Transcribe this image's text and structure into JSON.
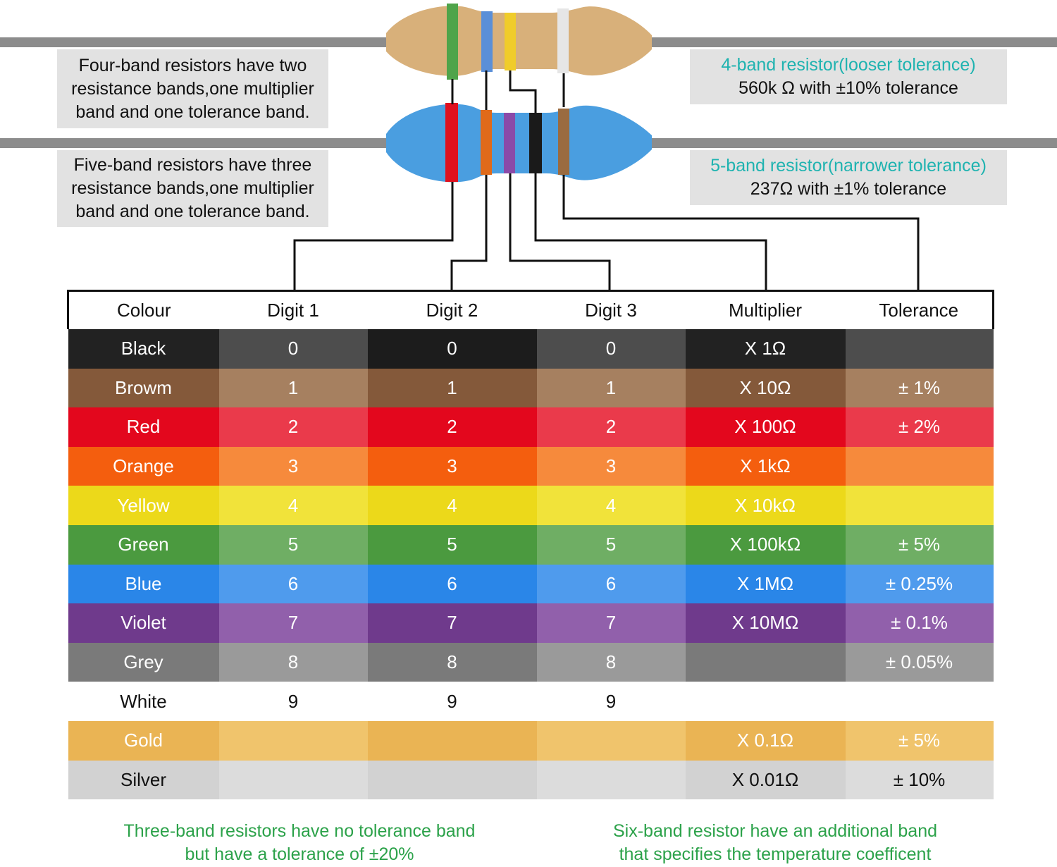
{
  "notes": {
    "left_four_band": [
      "Four-band resistors have two",
      "resistance bands,one multiplier",
      "band and one tolerance band."
    ],
    "left_five_band": [
      "Five-band resistors have three",
      "resistance bands,one multiplier",
      "band and one tolerance band."
    ],
    "right_four_band": {
      "title": "4-band resistor(looser tolerance)",
      "value": "560k Ω with ±10% tolerance"
    },
    "right_five_band": {
      "title": "5-band resistor(narrower tolerance)",
      "value": "237Ω with ±1% tolerance"
    }
  },
  "colors": {
    "accent_teal": "#1fb3b0",
    "footer_green": "#2ca24a",
    "four_band_body": "#d8b07a",
    "five_band_body": "#4a9ee0"
  },
  "four_band_resistor": {
    "bands": [
      "#4fa44a",
      "#5a8fd8",
      "#f0cc2a",
      "#e6e6e6"
    ]
  },
  "five_band_resistor": {
    "bands": [
      "#e0101e",
      "#e06a1a",
      "#8a4aa8",
      "#1a1a1a",
      "#9a6b40"
    ]
  },
  "table": {
    "headers": [
      "Colour",
      "Digit 1",
      "Digit 2",
      "Digit 3",
      "Multiplier",
      "Tolerance"
    ],
    "rows": [
      {
        "name": "Black",
        "cells": [
          "0",
          "0",
          "0",
          "X 1Ω",
          ""
        ],
        "shades": [
          "#222222",
          "#4d4d4d",
          "#1c1c1c",
          "#4d4d4d",
          "#222222",
          "#4d4d4d"
        ]
      },
      {
        "name": "Browm",
        "cells": [
          "1",
          "1",
          "1",
          "X 10Ω",
          "± 1%"
        ],
        "shades": [
          "#84593a",
          "#a68060",
          "#84593a",
          "#a68060",
          "#84593a",
          "#a68060"
        ]
      },
      {
        "name": "Red",
        "cells": [
          "2",
          "2",
          "2",
          "X 100Ω",
          "± 2%"
        ],
        "shades": [
          "#e3071d",
          "#ea3a4b",
          "#e3071d",
          "#ea3a4b",
          "#e3071d",
          "#ea3a4b"
        ]
      },
      {
        "name": "Orange",
        "cells": [
          "3",
          "3",
          "3",
          "X 1kΩ",
          ""
        ],
        "shades": [
          "#f45e0e",
          "#f68a3c",
          "#f45e0e",
          "#f68a3c",
          "#f45e0e",
          "#f68a3c"
        ]
      },
      {
        "name": "Yellow",
        "cells": [
          "4",
          "4",
          "4",
          "X 10kΩ",
          ""
        ],
        "shades": [
          "#ecd91a",
          "#f1e33a",
          "#ecd91a",
          "#f1e33a",
          "#ecd91a",
          "#f1e33a"
        ]
      },
      {
        "name": "Green",
        "cells": [
          "5",
          "5",
          "5",
          "X 100kΩ",
          "± 5%"
        ],
        "shades": [
          "#4b9a3f",
          "#6fae64",
          "#4b9a3f",
          "#6fae64",
          "#4b9a3f",
          "#6fae64"
        ]
      },
      {
        "name": "Blue",
        "cells": [
          "6",
          "6",
          "6",
          "X 1MΩ",
          "± 0.25%"
        ],
        "shades": [
          "#2a86e8",
          "#4f9bed",
          "#2a86e8",
          "#4f9bed",
          "#2a86e8",
          "#4f9bed"
        ]
      },
      {
        "name": "Violet",
        "cells": [
          "7",
          "7",
          "7",
          "X 10MΩ",
          "± 0.1%"
        ],
        "shades": [
          "#6f3a8c",
          "#9160ab",
          "#6f3a8c",
          "#9160ab",
          "#6f3a8c",
          "#9160ab"
        ]
      },
      {
        "name": "Grey",
        "cells": [
          "8",
          "8",
          "8",
          "",
          "± 0.05%"
        ],
        "shades": [
          "#7a7a7a",
          "#9a9a9a",
          "#7a7a7a",
          "#9a9a9a",
          "#7a7a7a",
          "#9a9a9a"
        ]
      },
      {
        "name": "White",
        "cells": [
          "9",
          "9",
          "9",
          "",
          ""
        ],
        "shades": [
          "#ffffff",
          "#ffffff",
          "#ffffff",
          "#ffffff",
          "#ffffff",
          "#ffffff"
        ]
      },
      {
        "name": "Gold",
        "cells": [
          "",
          "",
          "",
          "X 0.1Ω",
          "± 5%"
        ],
        "shades": [
          "#eab454",
          "#f0c46c",
          "#eab454",
          "#f0c46c",
          "#eab454",
          "#f0c46c"
        ]
      },
      {
        "name": "Silver",
        "cells": [
          "",
          "",
          "",
          "X 0.01Ω",
          "± 10%"
        ],
        "shades": [
          "#d2d2d2",
          "#dcdcdc",
          "#d2d2d2",
          "#dcdcdc",
          "#d2d2d2",
          "#dcdcdc"
        ]
      }
    ]
  },
  "footer": {
    "left": [
      "Three-band resistors have no tolerance band",
      "but have a tolerance of ±20%"
    ],
    "right": [
      "Six-band resistor have an additional band",
      "that specifies the temperature coefficent"
    ]
  }
}
